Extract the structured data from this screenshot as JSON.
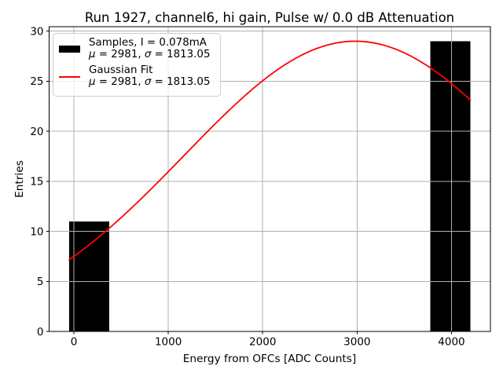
{
  "chart_data": {
    "type": "histogram",
    "title": "Run 1927, channel6, hi gain, Pulse w/ 0.0 dB Attenuation",
    "xlabel": "Energy from OFCs [ADC Counts]",
    "ylabel": "Entries",
    "xlim": [
      -262.5,
      4412.5
    ],
    "ylim": [
      0,
      30.45
    ],
    "xticks": [
      0,
      1000,
      2000,
      3000,
      4000
    ],
    "yticks": [
      0,
      5,
      10,
      15,
      20,
      25,
      30
    ],
    "grid": true,
    "grid_color": "#b0b0b0",
    "background_color": "#ffffff",
    "spine_color": "#000000",
    "histogram": {
      "color": "#000000",
      "bin_edges": [
        -50,
        375,
        800,
        1225,
        1650,
        2075,
        2500,
        2925,
        3350,
        3775,
        4200
      ],
      "counts": [
        11,
        0,
        0,
        0,
        0,
        0,
        0,
        0,
        0,
        29
      ]
    },
    "fit_curve": {
      "shape": "gaussian",
      "color": "#ff0000",
      "amplitude": 29,
      "mu": 2981,
      "sigma": 1813.05,
      "x_start": -50,
      "x_end": 4200
    },
    "legend": {
      "position": "upper-left",
      "entries": [
        {
          "swatch_type": "patch",
          "swatch_color": "#000000",
          "label": "Samples, I = 0.078mA",
          "stats": "μ = 2981, σ = 1813.05"
        },
        {
          "swatch_type": "line",
          "swatch_color": "#ff0000",
          "label": "Gaussian Fit",
          "stats": "μ = 2981, σ = 1813.05"
        }
      ]
    }
  }
}
